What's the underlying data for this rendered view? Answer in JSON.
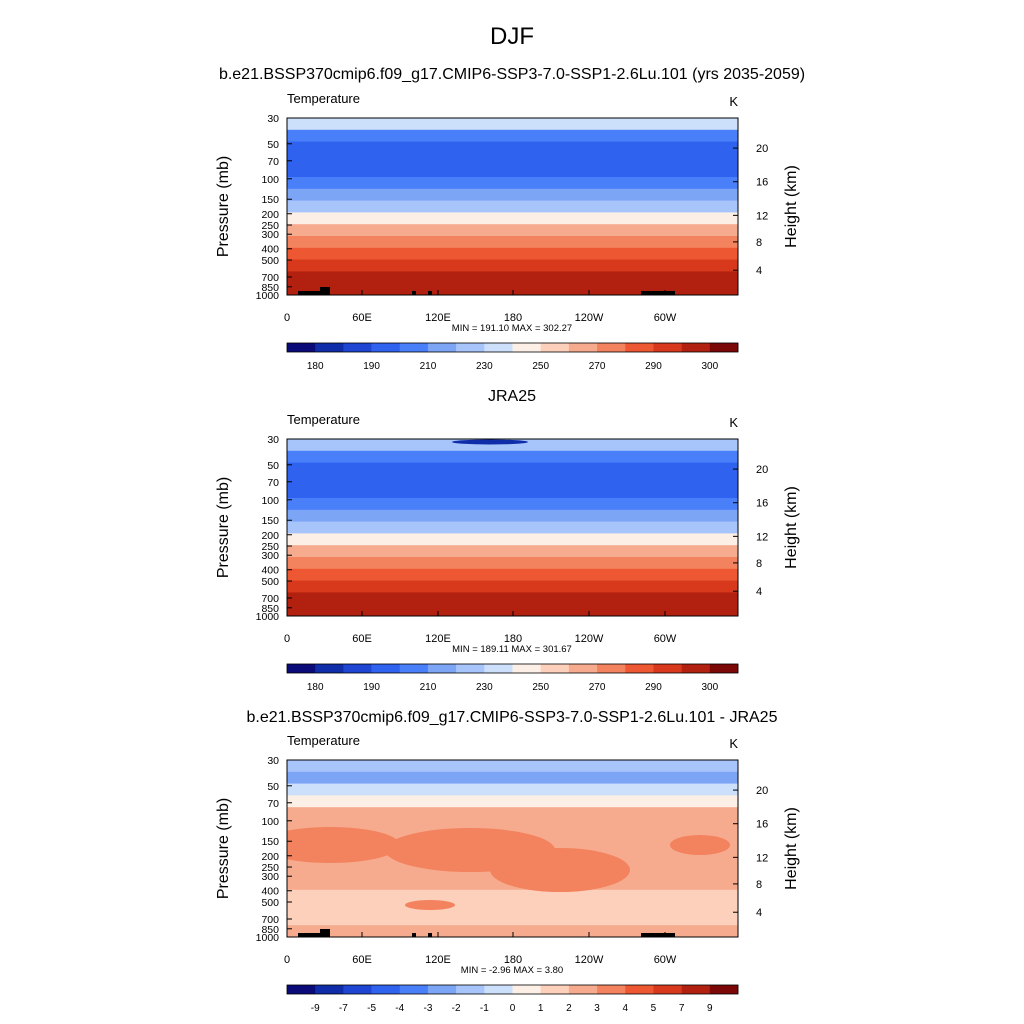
{
  "figure": {
    "title": "DJF",
    "colors": {
      "abs_palette": [
        "#0a0a78",
        "#0f2da8",
        "#1e46d2",
        "#2f62ee",
        "#4a7ffa",
        "#7da5f5",
        "#a7c5fb",
        "#cce0fc",
        "#fcefe6",
        "#fcd0ba",
        "#f7ab8e",
        "#f3825e",
        "#ed5832",
        "#d8381c",
        "#b2210f",
        "#7c0707"
      ],
      "diff_palette": [
        "#0a0a78",
        "#0f2da8",
        "#1e46d2",
        "#2f62ee",
        "#4a7ffa",
        "#7da5f5",
        "#a7c5fb",
        "#cce0fc",
        "#fcefe6",
        "#fcd0ba",
        "#f7ab8e",
        "#f3825e",
        "#ed5832",
        "#d8381c",
        "#b2210f",
        "#7c0707"
      ],
      "topography": "#000000"
    }
  },
  "chart_data": [
    {
      "type": "heatmap",
      "panel_title": "b.e21.BSSP370cmip6.f09_g17.CMIP6-SSP3-7.0-SSP1-2.6Lu.101 (yrs 2035-2059)",
      "variable": "Temperature",
      "units": "K",
      "xlabel": "",
      "ylabel": "Pressure (mb)",
      "y2label": "Height (km)",
      "x_ticks": [
        "0",
        "60E",
        "120E",
        "180",
        "120W",
        "60W"
      ],
      "y_ticks": [
        "30",
        "50",
        "70",
        "100",
        "150",
        "200",
        "250",
        "300",
        "400",
        "500",
        "700",
        "850",
        "1000"
      ],
      "y2_ticks": [
        "20",
        "16",
        "12",
        "8",
        "4"
      ],
      "stats": "MIN = 191.10  MAX = 302.27",
      "colorbar_labels": [
        "180",
        "190",
        "210",
        "230",
        "250",
        "270",
        "290",
        "300"
      ],
      "levels": [
        30,
        50,
        70,
        100,
        150,
        200,
        250,
        300,
        400,
        500,
        700,
        850,
        1000
      ],
      "bands": [
        7,
        4,
        3,
        3,
        3,
        4,
        5,
        6,
        8,
        10,
        11,
        12,
        13,
        14,
        14
      ],
      "topography": true,
      "min": 191.1,
      "max": 302.27
    },
    {
      "type": "heatmap",
      "panel_title": "JRA25",
      "variable": "Temperature",
      "units": "K",
      "xlabel": "",
      "ylabel": "Pressure (mb)",
      "y2label": "Height (km)",
      "x_ticks": [
        "0",
        "60E",
        "120E",
        "180",
        "120W",
        "60W"
      ],
      "y_ticks": [
        "30",
        "50",
        "70",
        "100",
        "150",
        "200",
        "250",
        "300",
        "400",
        "500",
        "700",
        "850",
        "1000"
      ],
      "y2_ticks": [
        "20",
        "16",
        "12",
        "8",
        "4"
      ],
      "stats": "MIN = 189.11  MAX = 301.67",
      "colorbar_labels": [
        "180",
        "190",
        "210",
        "230",
        "250",
        "270",
        "290",
        "300"
      ],
      "levels": [
        30,
        50,
        70,
        100,
        150,
        200,
        250,
        300,
        400,
        500,
        700,
        850,
        1000
      ],
      "bands": [
        6,
        4,
        3,
        3,
        3,
        4,
        5,
        6,
        8,
        10,
        11,
        12,
        13,
        14,
        14
      ],
      "topography": false,
      "min": 189.11,
      "max": 301.67
    },
    {
      "type": "heatmap",
      "panel_title": "b.e21.BSSP370cmip6.f09_g17.CMIP6-SSP3-7.0-SSP1-2.6Lu.101 - JRA25",
      "variable": "Temperature",
      "units": "K",
      "xlabel": "",
      "ylabel": "Pressure (mb)",
      "y2label": "Height (km)",
      "x_ticks": [
        "0",
        "60E",
        "120E",
        "180",
        "120W",
        "60W"
      ],
      "y_ticks": [
        "30",
        "50",
        "70",
        "100",
        "150",
        "200",
        "250",
        "300",
        "400",
        "500",
        "700",
        "850",
        "1000"
      ],
      "y2_ticks": [
        "20",
        "16",
        "12",
        "8",
        "4"
      ],
      "stats": "MIN =  -2.96  MAX =   3.80",
      "colorbar_labels": [
        "-9",
        "-7",
        "-5",
        "-4",
        "-3",
        "-2",
        "-1",
        "0",
        "1",
        "2",
        "3",
        "4",
        "5",
        "7",
        "9"
      ],
      "levels": [
        30,
        50,
        70,
        100,
        150,
        200,
        250,
        300,
        400,
        500,
        700,
        850,
        1000
      ],
      "bands": [
        6,
        5,
        7,
        8,
        10,
        10,
        10,
        10,
        10,
        10,
        10,
        9,
        9,
        9,
        10
      ],
      "topography": true,
      "min": -2.96,
      "max": 3.8
    }
  ]
}
